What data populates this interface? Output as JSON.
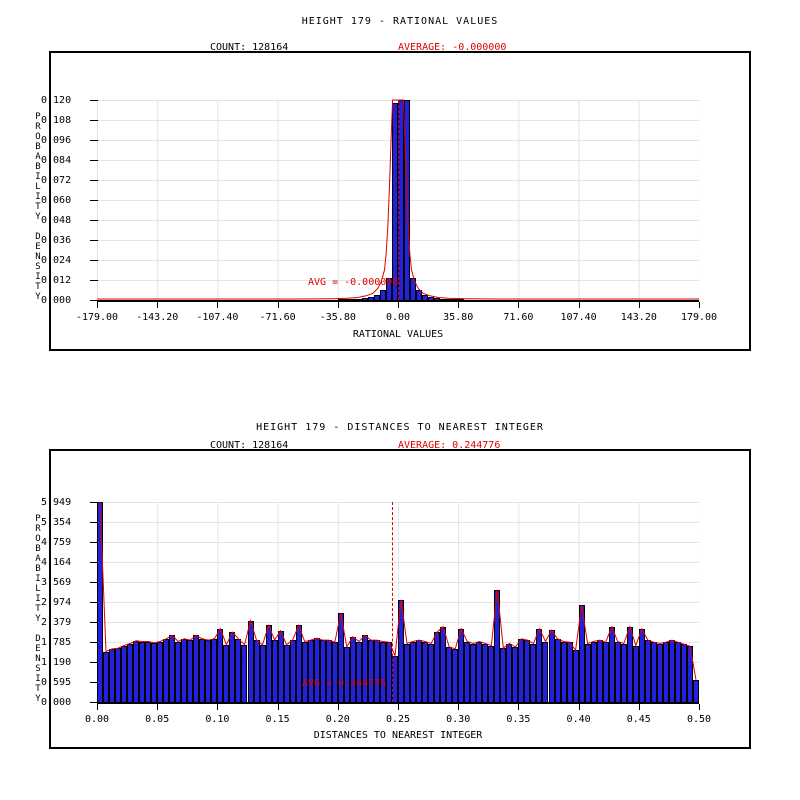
{
  "colors": {
    "background": "#ffffff",
    "bar_fill": "#2121de",
    "bar_border": "#000000",
    "curve": "#e00000",
    "average_text": "#e00000",
    "grid": "#e3e3e3",
    "axis": "#000000"
  },
  "charts": [
    {
      "title": "HEIGHT 179 - RATIONAL VALUES",
      "count_label": "COUNT: 128164",
      "average_label": "AVERAGE: -0.000000",
      "avg_annotation": "AVG = -0.000000",
      "xlabel": "RATIONAL VALUES",
      "ylabel": "PROBABILITY DENSITY",
      "y_ticks": [
        "0.120",
        "0.108",
        "0.096",
        "0.084",
        "0.072",
        "0.060",
        "0.048",
        "0.036",
        "0.024",
        "0.012",
        "0.000"
      ],
      "x_ticks": [
        "-179.00",
        "-143.20",
        "-107.40",
        "-71.60",
        "-35.80",
        "0.00",
        "35.80",
        "71.60",
        "107.40",
        "143.20",
        "179.00"
      ],
      "chart_data": {
        "type": "bar",
        "subtype": "histogram-with-density-curve",
        "title": "HEIGHT 179 - RATIONAL VALUES",
        "xlabel": "RATIONAL VALUES",
        "ylabel": "PROBABILITY DENSITY",
        "count": 128164,
        "average": -0.0,
        "x_min": -179.0,
        "x_max": 179.0,
        "bin_width": 3.58,
        "ylim": [
          0,
          0.12
        ],
        "grid": true,
        "values": [
          0,
          0,
          0,
          0,
          0,
          0,
          0,
          0,
          0,
          0,
          0,
          0,
          0,
          0,
          0,
          0,
          0,
          0,
          0,
          0,
          0,
          0,
          0,
          0,
          0,
          0,
          0,
          0,
          0,
          0,
          0,
          0,
          0,
          0,
          0,
          0,
          0,
          0,
          0,
          0,
          0.0003,
          0.0004,
          0.0005,
          0.0008,
          0.0012,
          0.002,
          0.0032,
          0.006,
          0.013,
          0.118,
          0.12,
          0.12,
          0.013,
          0.006,
          0.0032,
          0.002,
          0.0012,
          0.0008,
          0.0005,
          0.0004,
          0.0003,
          0,
          0,
          0,
          0,
          0,
          0,
          0,
          0,
          0,
          0,
          0,
          0,
          0,
          0,
          0,
          0,
          0,
          0,
          0,
          0,
          0,
          0,
          0,
          0,
          0,
          0,
          0,
          0,
          0,
          0,
          0,
          0,
          0,
          0,
          0,
          0,
          0,
          0,
          0
        ],
        "curve_points": [
          [
            -179,
            0.0006
          ],
          [
            -60,
            0.0006
          ],
          [
            -40,
            0.0008
          ],
          [
            -30,
            0.001
          ],
          [
            -24,
            0.0015
          ],
          [
            -19,
            0.0025
          ],
          [
            -15,
            0.004
          ],
          [
            -12,
            0.007
          ],
          [
            -10,
            0.011
          ],
          [
            -8,
            0.018
          ],
          [
            -7,
            0.028
          ],
          [
            -6,
            0.045
          ],
          [
            -5,
            0.07
          ],
          [
            -4,
            0.1
          ],
          [
            -3.2,
            0.12
          ],
          [
            3.2,
            0.12
          ],
          [
            4,
            0.1
          ],
          [
            5,
            0.07
          ],
          [
            6,
            0.045
          ],
          [
            7,
            0.028
          ],
          [
            8,
            0.018
          ],
          [
            10,
            0.011
          ],
          [
            12,
            0.007
          ],
          [
            15,
            0.004
          ],
          [
            19,
            0.0025
          ],
          [
            24,
            0.0015
          ],
          [
            30,
            0.001
          ],
          [
            40,
            0.0008
          ],
          [
            60,
            0.0006
          ],
          [
            179,
            0.0006
          ]
        ]
      }
    },
    {
      "title": "HEIGHT 179 - DISTANCES TO NEAREST INTEGER",
      "count_label": "COUNT: 128164",
      "average_label": "AVERAGE: 0.244776",
      "avg_annotation": "AVG = 0.244776",
      "xlabel": "DISTANCES TO NEAREST INTEGER",
      "ylabel": "PROBABILITY DENSITY",
      "y_ticks": [
        "5.949",
        "5.354",
        "4.759",
        "4.164",
        "3.569",
        "2.974",
        "2.379",
        "1.785",
        "1.190",
        "0.595",
        "0.000"
      ],
      "x_ticks": [
        "0.00",
        "0.05",
        "0.10",
        "0.15",
        "0.20",
        "0.25",
        "0.30",
        "0.35",
        "0.40",
        "0.45",
        "0.50"
      ],
      "chart_data": {
        "type": "bar",
        "subtype": "histogram-with-density-curve",
        "title": "HEIGHT 179 - DISTANCES TO NEAREST INTEGER",
        "xlabel": "DISTANCES TO NEAREST INTEGER",
        "ylabel": "PROBABILITY DENSITY",
        "count": 128164,
        "average": 0.244776,
        "x_min": 0.0,
        "x_max": 0.5,
        "bin_width": 0.005,
        "ylim": [
          0,
          5.949
        ],
        "grid": true,
        "values": [
          5.949,
          1.5,
          1.58,
          1.6,
          1.68,
          1.74,
          1.82,
          1.8,
          1.8,
          1.76,
          1.8,
          1.88,
          1.98,
          1.8,
          1.88,
          1.84,
          1.98,
          1.88,
          1.84,
          1.88,
          2.18,
          1.7,
          2.08,
          1.88,
          1.7,
          2.42,
          1.84,
          1.7,
          2.28,
          1.84,
          2.12,
          1.7,
          1.84,
          2.28,
          1.8,
          1.84,
          1.9,
          1.84,
          1.84,
          1.78,
          2.64,
          1.64,
          1.94,
          1.8,
          1.98,
          1.84,
          1.84,
          1.8,
          1.78,
          1.38,
          3.04,
          1.74,
          1.8,
          1.84,
          1.8,
          1.74,
          2.08,
          2.24,
          1.64,
          1.58,
          2.18,
          1.8,
          1.74,
          1.8,
          1.74,
          1.68,
          3.34,
          1.6,
          1.74,
          1.64,
          1.88,
          1.84,
          1.74,
          2.18,
          1.8,
          2.14,
          1.88,
          1.8,
          1.78,
          1.54,
          2.88,
          1.74,
          1.8,
          1.84,
          1.78,
          2.24,
          1.8,
          1.74,
          2.24,
          1.68,
          2.18,
          1.84,
          1.78,
          1.74,
          1.78,
          1.84,
          1.78,
          1.72,
          1.66,
          0.66
        ],
        "curve": "follows-bar-tops"
      }
    }
  ]
}
